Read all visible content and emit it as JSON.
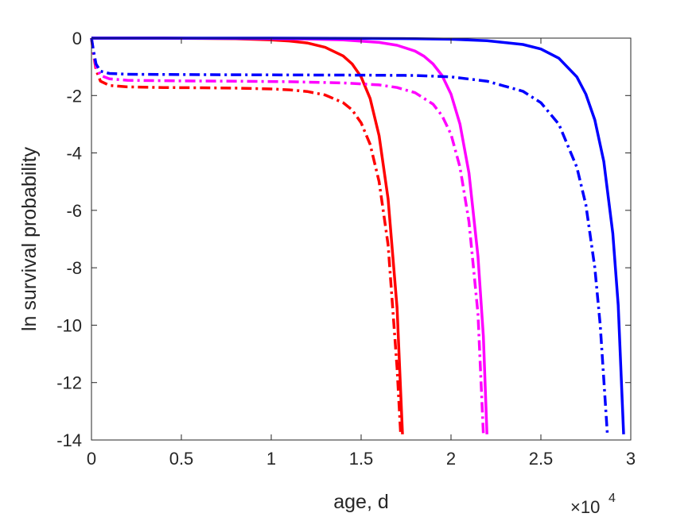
{
  "chart_data": {
    "type": "line",
    "title": "",
    "xlabel": "age, d",
    "ylabel": "ln survival probability",
    "x_multiplier_label": "×10",
    "x_multiplier_exponent": "4",
    "xlim": [
      0,
      30000
    ],
    "ylim": [
      -14,
      0
    ],
    "xticks": [
      0,
      5000,
      10000,
      15000,
      20000,
      25000,
      30000
    ],
    "xtick_labels": [
      "0",
      "0.5",
      "1",
      "1.5",
      "2",
      "2.5",
      "3"
    ],
    "yticks": [
      0,
      -2,
      -4,
      -6,
      -8,
      -10,
      -12,
      -14
    ],
    "ytick_labels": [
      "0",
      "-2",
      "-4",
      "-6",
      "-8",
      "-10",
      "-12",
      "-14"
    ],
    "grid": false,
    "box": true,
    "series": [
      {
        "color": "#ff0000",
        "style": "solid",
        "x": [
          0,
          2000,
          4000,
          6000,
          8000,
          10000,
          11000,
          12000,
          13000,
          14000,
          14500,
          15000,
          15500,
          16000,
          16500,
          17000,
          17300
        ],
        "y": [
          0,
          0,
          0,
          -0.01,
          -0.02,
          -0.06,
          -0.1,
          -0.17,
          -0.32,
          -0.62,
          -0.9,
          -1.35,
          -2.1,
          -3.4,
          -5.6,
          -9.4,
          -13.8
        ]
      },
      {
        "color": "#ff0000",
        "style": "dashdot",
        "x": [
          0,
          100,
          250,
          500,
          1000,
          2000,
          4000,
          6000,
          8000,
          10000,
          11000,
          12000,
          13000,
          14000,
          14500,
          15000,
          15500,
          16000,
          16500,
          17000,
          17200
        ],
        "y": [
          0,
          -0.5,
          -1.1,
          -1.5,
          -1.65,
          -1.7,
          -1.72,
          -1.73,
          -1.74,
          -1.77,
          -1.8,
          -1.86,
          -1.98,
          -2.25,
          -2.5,
          -2.95,
          -3.7,
          -5.0,
          -7.2,
          -11.5,
          -13.8
        ]
      },
      {
        "color": "#ff00ff",
        "style": "solid",
        "x": [
          0,
          4000,
          8000,
          12000,
          14000,
          16000,
          17000,
          18000,
          18500,
          19000,
          19500,
          20000,
          20500,
          21000,
          21500,
          21800,
          22000
        ],
        "y": [
          0,
          0,
          -0.01,
          -0.03,
          -0.06,
          -0.15,
          -0.25,
          -0.45,
          -0.63,
          -0.9,
          -1.3,
          -1.95,
          -3.0,
          -4.7,
          -7.6,
          -10.4,
          -13.8
        ]
      },
      {
        "color": "#ff00ff",
        "style": "dashdot",
        "x": [
          0,
          100,
          250,
          500,
          1000,
          2000,
          5000,
          8000,
          11000,
          14000,
          16000,
          17000,
          18000,
          19000,
          19500,
          20000,
          20500,
          21000,
          21500,
          21800
        ],
        "y": [
          0,
          -0.45,
          -1.0,
          -1.3,
          -1.42,
          -1.47,
          -1.49,
          -1.5,
          -1.52,
          -1.56,
          -1.63,
          -1.72,
          -1.9,
          -2.3,
          -2.7,
          -3.35,
          -4.5,
          -6.4,
          -9.6,
          -13.8
        ]
      },
      {
        "color": "#0000ff",
        "style": "solid",
        "x": [
          0,
          5000,
          10000,
          15000,
          18000,
          20000,
          22000,
          24000,
          25000,
          26000,
          27000,
          27500,
          28000,
          28500,
          29000,
          29300,
          29600
        ],
        "y": [
          0,
          0,
          0,
          -0.01,
          -0.02,
          -0.04,
          -0.09,
          -0.22,
          -0.38,
          -0.7,
          -1.35,
          -1.95,
          -2.85,
          -4.3,
          -6.8,
          -9.3,
          -13.8
        ]
      },
      {
        "color": "#0000ff",
        "style": "dashdot",
        "x": [
          0,
          100,
          250,
          500,
          1000,
          2000,
          5000,
          10000,
          15000,
          18000,
          20000,
          22000,
          24000,
          25000,
          26000,
          27000,
          27500,
          28000,
          28300,
          28700
        ],
        "y": [
          0,
          -0.4,
          -0.9,
          -1.15,
          -1.23,
          -1.26,
          -1.27,
          -1.28,
          -1.29,
          -1.3,
          -1.35,
          -1.5,
          -1.85,
          -2.25,
          -3.0,
          -4.5,
          -5.8,
          -8.0,
          -10.0,
          -13.8
        ]
      }
    ]
  }
}
